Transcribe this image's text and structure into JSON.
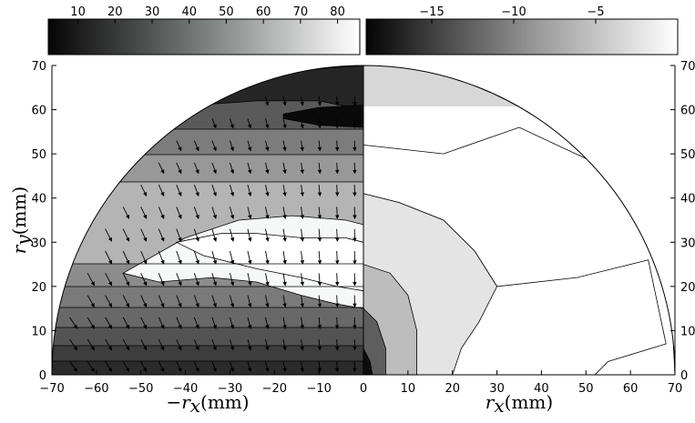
{
  "chart_data": [
    {
      "type": "contour",
      "panel": "left",
      "xlabel": "−r_x(mm)",
      "ylabel": "r_y(mm)",
      "xlim": [
        -70,
        0
      ],
      "ylim": [
        0,
        70
      ],
      "xticks": [
        -70,
        -60,
        -50,
        -40,
        -30,
        -20,
        -10,
        0
      ],
      "yticks": [
        0,
        10,
        20,
        30,
        40,
        50,
        60,
        70
      ],
      "colorbar": {
        "ticks": [
          10,
          20,
          30,
          40,
          50,
          60,
          70,
          80
        ],
        "range": [
          2,
          86
        ],
        "colormap": "gray"
      },
      "levels": [
        {
          "value": 82,
          "color": "#f6f8f7",
          "bands": [
            [
              -54,
              23
            ],
            [
              -40,
              31
            ],
            [
              -28,
              35
            ],
            [
              -16,
              36
            ],
            [
              -4,
              35
            ],
            [
              0,
              34
            ],
            [
              0,
              15
            ],
            [
              -6,
              16
            ],
            [
              -14,
              18
            ],
            [
              -24,
              21
            ],
            [
              -34,
              22
            ],
            [
              -46,
              21
            ]
          ]
        },
        {
          "value": 72,
          "color": "#ffffff",
          "bands": [
            [
              -42,
              30
            ],
            [
              -32,
              32
            ],
            [
              -24,
              32
            ],
            [
              -14,
              31
            ],
            [
              -4,
              31
            ],
            [
              0,
              30
            ],
            [
              0,
              19
            ],
            [
              -6,
              20
            ],
            [
              -14,
              22
            ],
            [
              -24,
              24
            ],
            [
              -36,
              27
            ]
          ]
        },
        {
          "value": 32,
          "color": "#262626",
          "bands": [
            [
              -52,
              64
            ],
            [
              -40,
              67
            ],
            [
              -28,
              68
            ],
            [
              -14,
              69
            ],
            [
              0,
              70
            ],
            [
              0,
              60
            ],
            [
              -10,
              62
            ],
            [
              -24,
              62
            ],
            [
              -38,
              61
            ]
          ]
        },
        {
          "value": 10,
          "color": "#0a0a0a",
          "bands": [
            [
              -18,
              59
            ],
            [
              -10,
              60.5
            ],
            [
              0,
              61
            ],
            [
              0,
              56
            ],
            [
              -10,
              56.5
            ],
            [
              -18,
              58
            ]
          ]
        }
      ],
      "vector_field": "arrows pointing downward and toward the centerline"
    },
    {
      "type": "contour",
      "panel": "right",
      "xlabel": "r_x(mm)",
      "ylabel": "",
      "xlim": [
        0,
        70
      ],
      "ylim": [
        0,
        70
      ],
      "xticks": [
        0,
        10,
        20,
        30,
        40,
        50,
        60,
        70
      ],
      "yticks": [
        0,
        10,
        20,
        30,
        40,
        50,
        60,
        70
      ],
      "colorbar": {
        "ticks": [
          -15,
          -10,
          -5
        ],
        "range": [
          -19,
          0
        ],
        "colormap": "gray"
      },
      "levels": [
        {
          "value": -0.5,
          "color": "#ffffff",
          "bands": [
            [
              0,
              52
            ],
            [
              18,
              50
            ],
            [
              35,
              56
            ],
            [
              52,
              48
            ],
            [
              66,
              40
            ],
            [
              69,
              20
            ],
            [
              70,
              0
            ],
            [
              52,
              0
            ],
            [
              55,
              3
            ],
            [
              68,
              7
            ],
            [
              64,
              26
            ],
            [
              48,
              22
            ],
            [
              30,
              20
            ],
            [
              25,
              28
            ],
            [
              18,
              35
            ],
            [
              8,
              39
            ],
            [
              0,
              41
            ]
          ]
        },
        {
          "value": -2,
          "color": "#e4e4e4",
          "bands": [
            [
              0,
              41
            ],
            [
              8,
              39
            ],
            [
              18,
              35
            ],
            [
              25,
              28
            ],
            [
              30,
              20
            ],
            [
              26,
              12
            ],
            [
              22,
              6
            ],
            [
              20,
              0
            ],
            [
              0,
              0
            ]
          ]
        },
        {
          "value": -6,
          "color": "#bdbdbd",
          "bands": [
            [
              0,
              25
            ],
            [
              6,
              23
            ],
            [
              10,
              18
            ],
            [
              12,
              10
            ],
            [
              12,
              0
            ],
            [
              0,
              0
            ]
          ]
        },
        {
          "value": -12,
          "color": "#5e5e5e",
          "bands": [
            [
              0,
              15
            ],
            [
              3,
              12
            ],
            [
              5,
              6
            ],
            [
              5,
              0
            ],
            [
              0,
              0
            ]
          ]
        },
        {
          "value": -18,
          "color": "#0d0d0d",
          "bands": [
            [
              0,
              6
            ],
            [
              1.5,
              3
            ],
            [
              2,
              0
            ],
            [
              0,
              0
            ]
          ]
        }
      ]
    }
  ]
}
